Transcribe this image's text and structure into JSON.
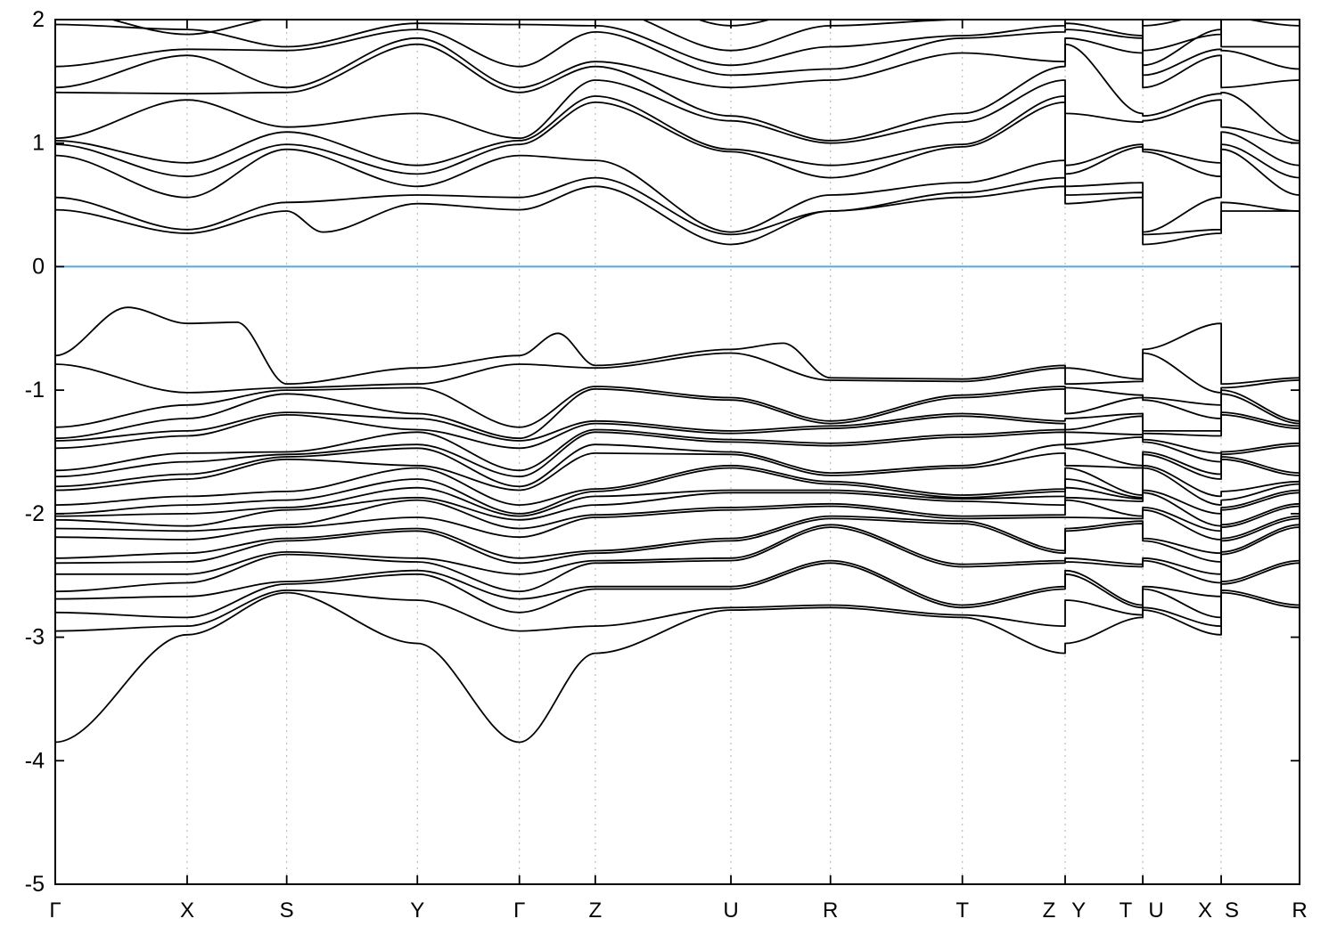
{
  "figure": {
    "background": "#ffffff",
    "description": "Electronic band structure plot along orthorhombic high-symmetry k-path with Fermi level at 0"
  },
  "chart_data": {
    "type": "line",
    "title": "",
    "xlabel": "",
    "ylabel": "",
    "ylim": [
      -5,
      2
    ],
    "yticks": [
      2,
      1,
      0,
      -1,
      -2,
      -3,
      -4,
      -5
    ],
    "grid": "vertical-dashed",
    "legend": "none",
    "band_color": "#000000",
    "fermi_level": 0,
    "fermi_color": "#54a9dc",
    "grid_color": "#b0b0b0",
    "kpath": "Γ-X-S-Y-Γ-Z-U-R-T-Z | Y-T | U-X | S-R",
    "kpoint_energy_order": [
      "Γ",
      "X",
      "S",
      "Y",
      "Z",
      "U",
      "R",
      "T"
    ],
    "kx_main": [
      0,
      0.106,
      0.186,
      0.291,
      0.373,
      0.434,
      0.543,
      0.623,
      0.729,
      0.8116
    ],
    "kx_main_labels": [
      "Γ",
      "X",
      "S",
      "Y",
      "Γ",
      "Z",
      "U",
      "R",
      "T",
      "Z"
    ],
    "kx_panels": [
      0.8116,
      0.874,
      0.937,
      1.0
    ],
    "panel_paths": [
      [
        "Y",
        "T"
      ],
      [
        "U",
        "X"
      ],
      [
        "S",
        "R"
      ]
    ],
    "xticks": [
      {
        "x": 0.0,
        "grid": false
      },
      {
        "x": 0.106,
        "grid": true
      },
      {
        "x": 0.186,
        "grid": true
      },
      {
        "x": 0.291,
        "grid": true
      },
      {
        "x": 0.373,
        "grid": true
      },
      {
        "x": 0.434,
        "grid": true
      },
      {
        "x": 0.543,
        "grid": true
      },
      {
        "x": 0.623,
        "grid": true
      },
      {
        "x": 0.729,
        "grid": true
      },
      {
        "x": 0.8116,
        "grid": true
      },
      {
        "x": 0.874,
        "grid": true
      },
      {
        "x": 0.937,
        "grid": true
      },
      {
        "x": 1.0,
        "grid": false
      }
    ],
    "xlabels": [
      {
        "x": 0.0,
        "text": "Γ"
      },
      {
        "x": 0.106,
        "text": "X"
      },
      {
        "x": 0.186,
        "text": "S"
      },
      {
        "x": 0.291,
        "text": "Y"
      },
      {
        "x": 0.373,
        "text": "Γ"
      },
      {
        "x": 0.434,
        "text": "Z"
      },
      {
        "x": 0.543,
        "text": "U"
      },
      {
        "x": 0.623,
        "text": "R"
      },
      {
        "x": 0.729,
        "text": "T"
      },
      {
        "x": 0.7987,
        "text": "Z"
      },
      {
        "x": 0.8224,
        "text": "Y"
      },
      {
        "x": 0.8603,
        "text": "T"
      },
      {
        "x": 0.8847,
        "text": "U"
      },
      {
        "x": 0.9241,
        "text": "X"
      },
      {
        "x": 0.9456,
        "text": "S"
      },
      {
        "x": 1.0,
        "text": "R"
      }
    ],
    "bands": [
      {
        "e": [
          -3.85,
          -2.98,
          -2.64,
          -3.05,
          -3.13,
          -2.78,
          -2.76,
          -2.84
        ]
      },
      {
        "e": [
          -2.95,
          -2.91,
          -2.62,
          -2.7,
          -2.91,
          -2.76,
          -2.74,
          -2.82
        ]
      },
      {
        "e": [
          -2.8,
          -2.84,
          -2.57,
          -2.49,
          -2.61,
          -2.61,
          -2.4,
          -2.76
        ]
      },
      {
        "e": [
          -2.69,
          -2.67,
          -2.55,
          -2.46,
          -2.59,
          -2.59,
          -2.38,
          -2.74
        ]
      },
      {
        "e": [
          -2.63,
          -2.56,
          -2.33,
          -2.39,
          -2.4,
          -2.38,
          -2.11,
          -2.43
        ]
      },
      {
        "e": [
          -2.49,
          -2.49,
          -2.31,
          -2.36,
          -2.38,
          -2.36,
          -2.09,
          -2.41
        ]
      },
      {
        "e": [
          -2.4,
          -2.39,
          -2.22,
          -2.14,
          -2.32,
          -2.22,
          -2.04,
          -2.08
        ]
      },
      {
        "e": [
          -2.36,
          -2.32,
          -2.2,
          -2.12,
          -2.3,
          -2.2,
          -2.02,
          -2.06
        ]
      },
      {
        "e": [
          -2.19,
          -2.21,
          -2.11,
          -2.03,
          -2.03,
          -1.97,
          -1.94,
          -2.04
        ]
      },
      {
        "e": [
          -2.12,
          -2.14,
          -2.09,
          -1.89,
          -2.01,
          -1.95,
          -1.92,
          -2.02
        ]
      },
      {
        "e": [
          -2.05,
          -2.1,
          -1.97,
          -1.87,
          -1.93,
          -1.83,
          -1.83,
          -1.9
        ]
      },
      {
        "e": [
          -2.02,
          -2.0,
          -1.95,
          -1.79,
          -1.86,
          -1.81,
          -1.81,
          -1.88
        ]
      },
      {
        "e": [
          -2.0,
          -1.93,
          -1.89,
          -1.72,
          -1.82,
          -1.63,
          -1.76,
          -1.87
        ]
      },
      {
        "e": [
          -1.93,
          -1.86,
          -1.82,
          -1.63,
          -1.8,
          -1.61,
          -1.74,
          -1.85
        ]
      },
      {
        "e": [
          -1.81,
          -1.72,
          -1.56,
          -1.61,
          -1.51,
          -1.52,
          -1.69,
          -1.63
        ]
      },
      {
        "e": [
          -1.78,
          -1.68,
          -1.54,
          -1.47,
          -1.44,
          -1.5,
          -1.67,
          -1.61
        ]
      },
      {
        "e": [
          -1.7,
          -1.58,
          -1.52,
          -1.44,
          -1.34,
          -1.42,
          -1.45,
          -1.38
        ]
      },
      {
        "e": [
          -1.65,
          -1.51,
          -1.5,
          -1.34,
          -1.32,
          -1.4,
          -1.43,
          -1.36
        ]
      },
      {
        "e": [
          -1.47,
          -1.37,
          -1.2,
          -1.32,
          -1.27,
          -1.35,
          -1.31,
          -1.21
        ]
      },
      {
        "e": [
          -1.41,
          -1.33,
          -1.18,
          -1.23,
          -1.25,
          -1.33,
          -1.29,
          -1.19
        ]
      },
      {
        "e": [
          -1.39,
          -1.23,
          -1.03,
          -1.19,
          -0.99,
          -1.08,
          -1.27,
          -1.06
        ]
      },
      {
        "e": [
          -1.3,
          -1.12,
          -1.0,
          -0.98,
          -0.97,
          -1.06,
          -1.25,
          -1.04
        ]
      },
      {
        "e": [
          -0.79,
          -1.02,
          -0.98,
          -0.95,
          -0.82,
          -0.7,
          -0.92,
          -0.93
        ]
      },
      {
        "e": [
          -0.72,
          -0.46,
          -0.95,
          -0.82,
          -0.8,
          -0.67,
          -0.9,
          -0.91
        ],
        "extra": [
          [
            0.058,
            -0.33
          ],
          [
            0.146,
            -0.45
          ],
          [
            0.404,
            -0.54
          ],
          [
            0.585,
            -0.62
          ]
        ]
      },
      {
        "e": [
          0.46,
          0.27,
          0.45,
          0.51,
          0.65,
          0.18,
          0.45,
          0.56
        ],
        "extra": [
          [
            0.215,
            0.28
          ]
        ]
      },
      {
        "e": [
          0.56,
          0.3,
          0.52,
          0.58,
          0.72,
          0.26,
          0.45,
          0.6
        ]
      },
      {
        "e": [
          0.9,
          0.56,
          0.95,
          0.65,
          0.86,
          0.28,
          0.58,
          0.68
        ]
      },
      {
        "e": [
          0.99,
          0.73,
          0.99,
          0.75,
          1.33,
          0.93,
          0.72,
          0.97
        ]
      },
      {
        "e": [
          1.02,
          0.84,
          1.09,
          0.82,
          1.38,
          0.95,
          0.82,
          0.99
        ]
      },
      {
        "e": [
          1.04,
          1.35,
          1.13,
          1.24,
          1.51,
          1.18,
          1.0,
          1.17
        ]
      },
      {
        "e": [
          1.41,
          1.4,
          1.41,
          1.8,
          1.62,
          1.22,
          1.02,
          1.24
        ]
      },
      {
        "e": [
          1.45,
          1.71,
          1.45,
          1.85,
          1.66,
          1.45,
          1.51,
          1.73
        ]
      },
      {
        "e": [
          1.62,
          1.76,
          1.75,
          1.92,
          1.9,
          1.55,
          1.6,
          1.85
        ]
      },
      {
        "e": [
          1.96,
          1.92,
          1.78,
          1.97,
          1.95,
          1.63,
          1.78,
          1.87
        ]
      },
      {
        "e": [
          2.08,
          1.88,
          2.02,
          2.06,
          2.1,
          1.75,
          1.95,
          2.0
        ]
      },
      {
        "e": [
          2.3,
          2.05,
          2.15,
          2.2,
          2.3,
          1.95,
          2.1,
          2.15
        ]
      }
    ]
  }
}
